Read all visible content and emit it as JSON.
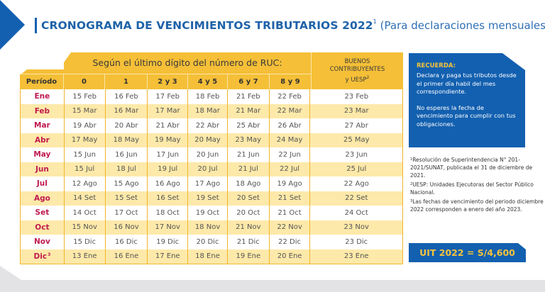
{
  "header": {
    "title": "CRONOGRAMA DE VENCIMIENTOS TRIBUTARIOS 2022",
    "title_sup": "1",
    "subtitle": "(Para declaraciones mensuales)"
  },
  "table": {
    "group_header": "Según el último dígito del número de RUC:",
    "buenos_header": [
      "BUENOS",
      "CONTRIBUYENTES",
      "y UESP"
    ],
    "buenos_sup": "2",
    "columns": [
      "Período",
      "0",
      "1",
      "2 y 3",
      "4 y 5",
      "6 y 7",
      "8 y 9"
    ],
    "rows": [
      {
        "period": "Ene",
        "sup": "",
        "values": [
          "15 Feb",
          "16 Feb",
          "17 Feb",
          "18 Feb",
          "21 Feb",
          "22 Feb",
          "23 Feb"
        ]
      },
      {
        "period": "Feb",
        "sup": "",
        "values": [
          "15 Mar",
          "16 Mar",
          "17 Mar",
          "18 Mar",
          "21 Mar",
          "22 Mar",
          "23 Mar"
        ]
      },
      {
        "period": "Mar",
        "sup": "",
        "values": [
          "19 Abr",
          "20 Abr",
          "21 Abr",
          "22 Abr",
          "25 Abr",
          "26 Abr",
          "27 Abr"
        ]
      },
      {
        "period": "Abr",
        "sup": "",
        "values": [
          "17 May",
          "18 May",
          "19 May",
          "20 May",
          "23 May",
          "24 May",
          "25 May"
        ]
      },
      {
        "period": "May",
        "sup": "",
        "values": [
          "15 Jun",
          "16 Jun",
          "17 Jun",
          "20 Jun",
          "21 Jun",
          "22 Jun",
          "23 Jun"
        ]
      },
      {
        "period": "Jun",
        "sup": "",
        "values": [
          "15 Jul",
          "18 Jul",
          "19 Jul",
          "20 Jul",
          "21 Jul",
          "22 Jul",
          "25 Jul"
        ]
      },
      {
        "period": "Jul",
        "sup": "",
        "values": [
          "12 Ago",
          "15 Ago",
          "16 Ago",
          "17 Ago",
          "18 Ago",
          "19 Ago",
          "22 Ago"
        ]
      },
      {
        "period": "Ago",
        "sup": "",
        "values": [
          "14 Set",
          "15 Set",
          "16 Set",
          "19 Set",
          "20 Set",
          "21 Set",
          "22 Set"
        ]
      },
      {
        "period": "Set",
        "sup": "",
        "values": [
          "14 Oct",
          "17 Oct",
          "18 Oct",
          "19 Oct",
          "20 Oct",
          "21 Oct",
          "24 Oct"
        ]
      },
      {
        "period": "Oct",
        "sup": "",
        "values": [
          "15 Nov",
          "16 Nov",
          "17 Nov",
          "18 Nov",
          "21 Nov",
          "22 Nov",
          "23 Nov"
        ]
      },
      {
        "period": "Nov",
        "sup": "",
        "values": [
          "15 Dic",
          "16 Dic",
          "19 Dic",
          "20 Dic",
          "21 Dic",
          "22 Dic",
          "23 Dic"
        ]
      },
      {
        "period": "Dic",
        "sup": "3",
        "values": [
          "13 Ene",
          "16 Ene",
          "17 Ene",
          "18 Ene",
          "19 Ene",
          "20 Ene",
          "23 Ene"
        ]
      }
    ]
  },
  "reminder": {
    "title": "RECUERDA:",
    "p1": "Declara y paga tus tributos desde el primer día habil del mes correspondiente.",
    "p2": "No esperes la fecha de vencimiento para cumplir con tus obligaciones."
  },
  "notes": [
    {
      "sup": "1",
      "text": "Resolución de Superintendencia N° 201-2021/SUNAT, publicada el 31 de diciembre de 2021."
    },
    {
      "sup": "2",
      "text": "UESP: Unidades Ejecutoras del Sector Público Nacional."
    },
    {
      "sup": "3",
      "text": "Las fechas de vencimiento del periodo diciembre 2022 corresponden a enero del año 2023."
    }
  ],
  "uit": "UIT 2022 = S/4,600",
  "colors": {
    "brand_blue": "#1360b0",
    "header_yellow": "#f5bf37",
    "row_alt_yellow": "#fde9a9",
    "period_red": "#c0194e",
    "accent_gold_text": "#f5c33b"
  }
}
